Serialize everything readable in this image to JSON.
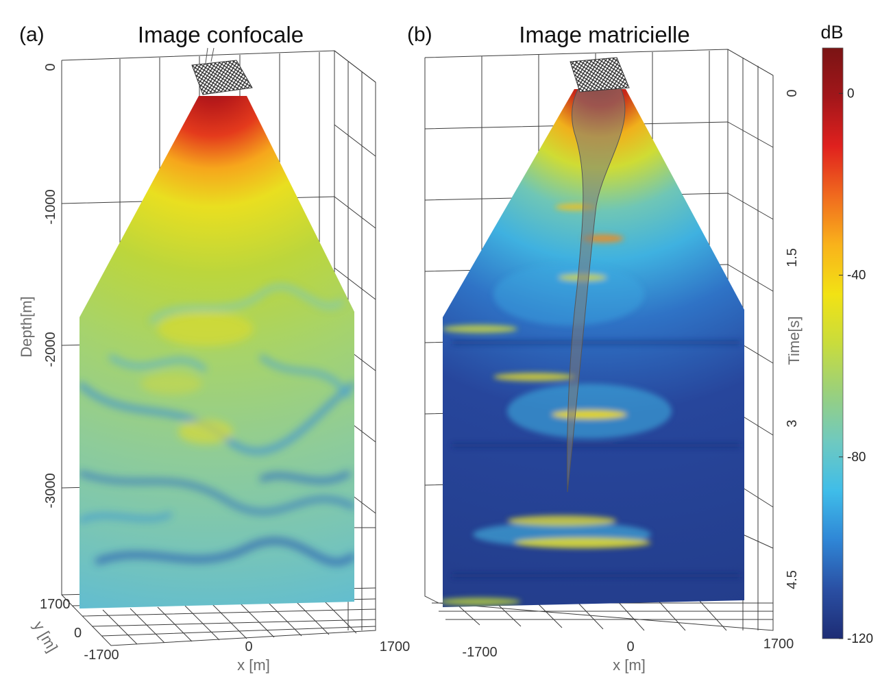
{
  "chart_data": [
    {
      "type": "heatmap",
      "panel_label": "(a)",
      "title": "Image confocale",
      "zlabel": "Depth[m]",
      "xlabel": "x [m]",
      "ylabel": "y [m]",
      "z_ticks": [
        "0",
        "-1000",
        "-2000",
        "-3000"
      ],
      "x_ticks": [
        "-1700",
        "0",
        "1700"
      ],
      "y_ticks": [
        "1700",
        "0"
      ],
      "zlim": [
        -3700,
        0
      ],
      "xlim": [
        -1700,
        1700
      ],
      "ylim": [
        -1700,
        1700
      ],
      "colorbar_unit": "dB"
    },
    {
      "type": "heatmap",
      "panel_label": "(b)",
      "title": "Image matricielle",
      "zlabel": "Time[s]",
      "xlabel": "x [m]",
      "z_ticks": [
        "0",
        "1.5",
        "3",
        "4.5"
      ],
      "x_ticks": [
        "-1700",
        "0",
        "1700"
      ],
      "zlim": [
        0,
        5.2
      ],
      "xlim": [
        -1700,
        1700
      ],
      "colorbar_unit": "dB"
    }
  ],
  "colorbar": {
    "unit": "dB",
    "ticks": [
      "0",
      "-40",
      "-80",
      "-120"
    ],
    "tick_values": [
      0,
      -40,
      -80,
      -120
    ],
    "range": [
      -120,
      10
    ],
    "colors": [
      "#1d2c74",
      "#2a4fa3",
      "#2f86d6",
      "#3fbde9",
      "#6fc9c0",
      "#9ad07c",
      "#c9dc3c",
      "#f2e214",
      "#f9b21b",
      "#f06a1e",
      "#e0211e",
      "#a2161a",
      "#7a1414"
    ]
  }
}
